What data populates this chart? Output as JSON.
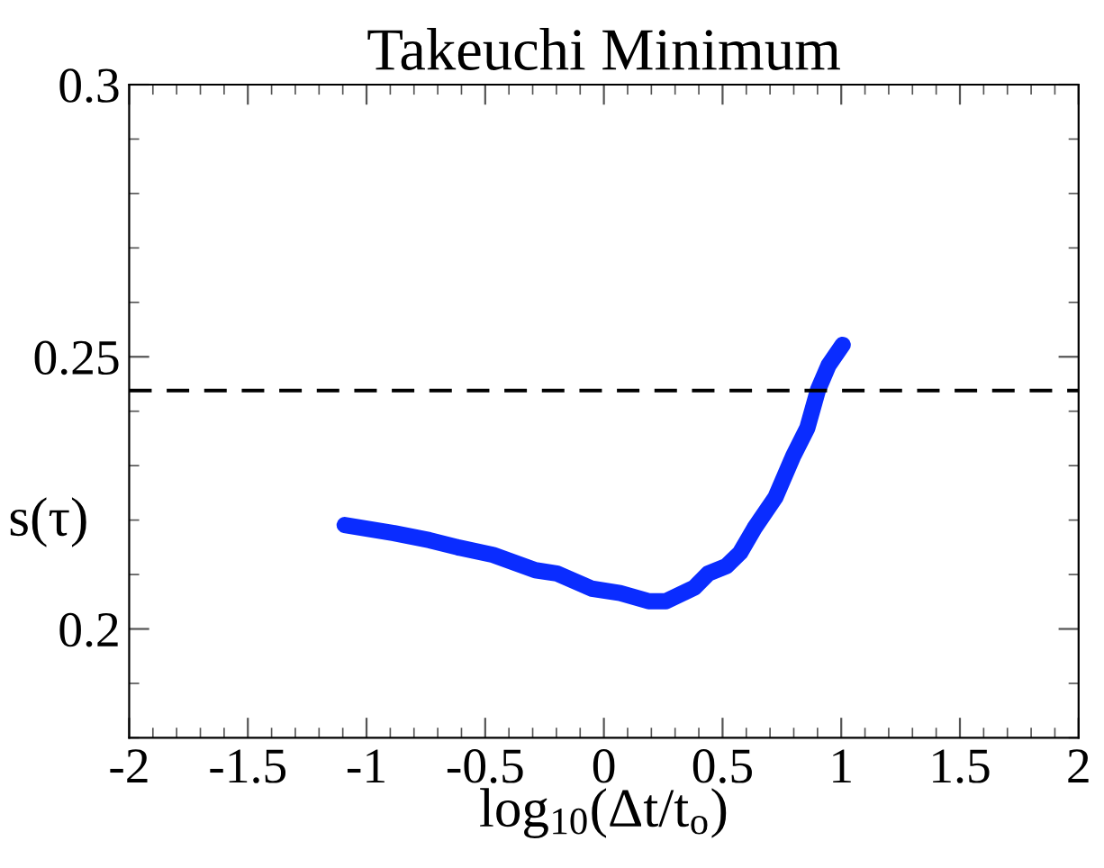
{
  "chart_data": {
    "type": "line",
    "title": "Takeuchi Minimum",
    "xlabel": "log$_{10}$(Δt/t$_{o}$)",
    "ylabel": "s(τ)",
    "xlim": [
      -2,
      2
    ],
    "xticks": [
      -2,
      -1.5,
      -1,
      -0.5,
      0,
      0.5,
      1,
      1.5,
      2
    ],
    "ylim": [
      0.18,
      0.3
    ],
    "yticks": [
      0.2,
      0.25,
      0.3
    ],
    "grid": false,
    "legend": false,
    "marker": "none",
    "line_style": "solid",
    "ref_lines": [
      {
        "axis": "y",
        "value": 0.2438,
        "label": null,
        "color": "#000000",
        "line_style": "dashed"
      }
    ],
    "series": [
      {
        "color": "#0a2cff",
        "x": [
          -1.092,
          -0.884,
          -0.735,
          -0.616,
          -0.467,
          -0.289,
          -0.199,
          -0.051,
          0.068,
          0.188,
          0.262,
          0.381,
          0.44,
          0.515,
          0.574,
          0.634,
          0.723,
          0.798,
          0.857,
          0.902,
          0.946,
          1.006
        ],
        "values": [
          0.2191,
          0.2176,
          0.2163,
          0.215,
          0.2136,
          0.2108,
          0.2102,
          0.2074,
          0.2066,
          0.2051,
          0.2051,
          0.2076,
          0.2102,
          0.2115,
          0.214,
          0.2185,
          0.2242,
          0.2318,
          0.2369,
          0.2439,
          0.2484,
          0.2522
        ]
      }
    ]
  }
}
